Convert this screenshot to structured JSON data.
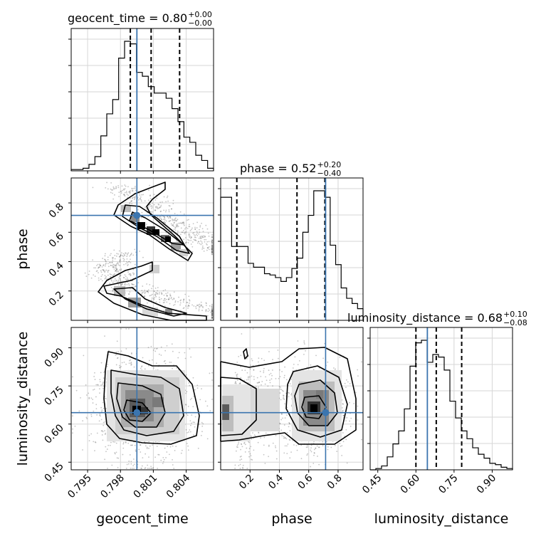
{
  "chart_data": {
    "type": "corner",
    "truth_color": "#3b75af",
    "parameters": [
      {
        "name": "geocent_time",
        "label": "geocent_time",
        "range": [
          0.7935,
          0.8065
        ],
        "ticks": [
          "0.795",
          "0.798",
          "0.801",
          "0.804"
        ],
        "tick_values": [
          0.795,
          0.798,
          0.801,
          0.804
        ],
        "truth": 0.7995,
        "quantiles": [
          0.7989,
          0.8008,
          0.8034
        ]
      },
      {
        "name": "phase",
        "label": "phase",
        "range": [
          0.0,
          0.97
        ],
        "ticks": [
          "0.2",
          "0.4",
          "0.6",
          "0.8"
        ],
        "tick_values": [
          0.2,
          0.4,
          0.6,
          0.8
        ],
        "truth": 0.715,
        "quantiles": [
          0.11,
          0.52,
          0.71
        ]
      },
      {
        "name": "luminosity_distance",
        "label": "luminosity_distance",
        "range": [
          0.42,
          0.98
        ],
        "ticks": [
          "0.45",
          "0.60",
          "0.75",
          "0.90"
        ],
        "tick_values": [
          0.45,
          0.6,
          0.75,
          0.9
        ],
        "truth": 0.645,
        "quantiles": [
          0.6,
          0.68,
          0.78
        ]
      }
    ],
    "titles": [
      {
        "param": "geocent_time",
        "main": "geocent_time = 0.80",
        "plus": "+0.00",
        "minus": "−0.00"
      },
      {
        "param": "phase",
        "main": "phase = 0.52",
        "plus": "+0.20",
        "minus": "−0.40"
      },
      {
        "param": "luminosity_distance",
        "main": "luminosity_distance = 0.68",
        "plus": "+0.10",
        "minus": "−0.08"
      }
    ],
    "histograms": [
      {
        "param": "geocent_time",
        "values": [
          0.01,
          0.01,
          0.02,
          0.05,
          0.11,
          0.27,
          0.44,
          0.55,
          0.87,
          1.0,
          0.98,
          0.76,
          0.73,
          0.65,
          0.6,
          0.6,
          0.56,
          0.48,
          0.38,
          0.26,
          0.22,
          0.12,
          0.08,
          0.02
        ]
      },
      {
        "param": "phase",
        "values": [
          0.95,
          0.95,
          0.57,
          0.57,
          0.57,
          0.44,
          0.41,
          0.41,
          0.36,
          0.35,
          0.33,
          0.3,
          0.33,
          0.4,
          0.48,
          0.68,
          0.81,
          1.0,
          1.0,
          0.95,
          0.58,
          0.43,
          0.25,
          0.17,
          0.13,
          0.09
        ]
      },
      {
        "param": "luminosity_distance",
        "values": [
          0.0,
          0.01,
          0.03,
          0.1,
          0.2,
          0.3,
          0.47,
          0.8,
          0.98,
          1.0,
          0.83,
          0.89,
          0.87,
          0.77,
          0.53,
          0.4,
          0.3,
          0.24,
          0.17,
          0.12,
          0.09,
          0.05,
          0.04,
          0.02,
          0.01
        ]
      }
    ]
  }
}
